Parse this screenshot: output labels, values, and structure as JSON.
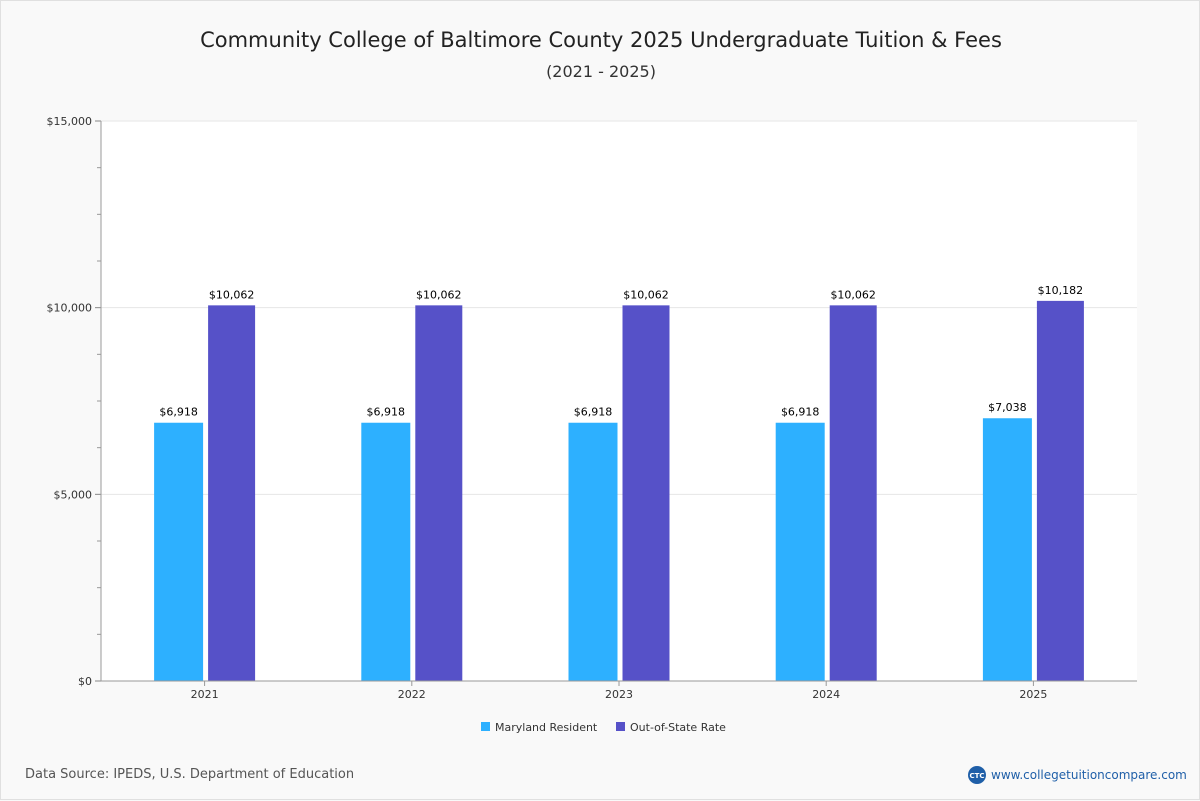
{
  "chart_data": {
    "type": "bar",
    "title": "Community College of Baltimore County 2025 Undergraduate Tuition & Fees",
    "subtitle": "(2021 - 2025)",
    "categories": [
      "2021",
      "2022",
      "2023",
      "2024",
      "2025"
    ],
    "series": [
      {
        "name": "Maryland Resident",
        "color": "#2db0ff",
        "values": [
          6918,
          6918,
          6918,
          6918,
          7038
        ],
        "labels": [
          "$6,918",
          "$6,918",
          "$6,918",
          "$6,918",
          "$7,038"
        ]
      },
      {
        "name": "Out-of-State Rate",
        "color": "#5651c8",
        "values": [
          10062,
          10062,
          10062,
          10062,
          10182
        ],
        "labels": [
          "$10,062",
          "$10,062",
          "$10,062",
          "$10,062",
          "$10,182"
        ]
      }
    ],
    "ylim": [
      0,
      15000
    ],
    "y_ticks": [
      0,
      5000,
      10000,
      15000
    ],
    "y_tick_labels": [
      "$0",
      "$5,000",
      "$10,000",
      "$15,000"
    ],
    "y_minor_step": 1250,
    "grid": true,
    "legend_position": "bottom-center",
    "xlabel": "",
    "ylabel": ""
  },
  "footer": {
    "source": "Data Source: IPEDS, U.S. Department of Education",
    "brand_logo": "CTC",
    "brand_url": "www.collegetuitioncompare.com"
  }
}
